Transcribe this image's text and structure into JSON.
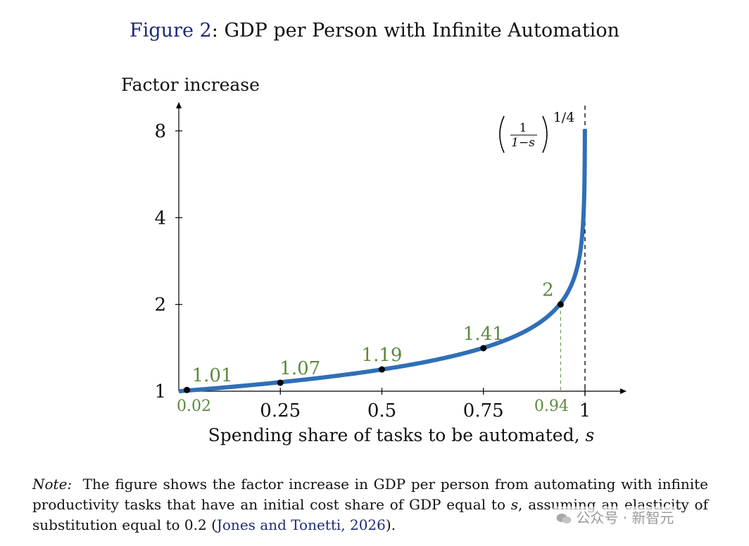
{
  "title": {
    "prefix": "Figure 2",
    "colon": ":",
    "text": "GDP per Person with Infinite Automation"
  },
  "chart_data": {
    "type": "line",
    "title": "GDP per Person with Infinite Automation",
    "xlabel": "Spending share of tasks to be automated,",
    "xlabel_var": "s",
    "ylabel": "Factor increase",
    "y_scale": "log",
    "xlim": [
      0,
      1.1
    ],
    "ylim": [
      1,
      9
    ],
    "x_ticks": [
      0.25,
      0.5,
      0.75,
      1
    ],
    "x_tick_labels": [
      "0.25",
      "0.5",
      "0.75",
      "1"
    ],
    "y_ticks": [
      1,
      2,
      4,
      8
    ],
    "y_tick_labels": [
      "1",
      "2",
      "4",
      "8"
    ],
    "series": [
      {
        "formula_base": "1/(1-s)",
        "exponent": "1/4",
        "x_max": 0.99977,
        "color": "#2f6fb7"
      }
    ],
    "highlight_points": [
      {
        "x": 0.02,
        "y": 1.01,
        "label": "1.01"
      },
      {
        "x": 0.25,
        "y": 1.07,
        "label": "1.07"
      },
      {
        "x": 0.5,
        "y": 1.19,
        "label": "1.19"
      },
      {
        "x": 0.75,
        "y": 1.41,
        "label": "1.41"
      },
      {
        "x": 0.94,
        "y": 2,
        "label": "2"
      }
    ],
    "extra_x_labels": [
      {
        "x": 0.02,
        "label": "0.02"
      },
      {
        "x": 0.94,
        "label": "0.94"
      }
    ],
    "asymptote_x": 1,
    "annotation": {
      "numerator": "1",
      "denominator": "1−s",
      "exponent": "1/4"
    },
    "label_color": "#5a8a3c",
    "point_color": "#000000"
  },
  "note": {
    "label": "Note:",
    "text_before": "The figure shows the factor increase in GDP per person from automating with infinite productivity tasks that have an initial cost share of GDP equal to",
    "var": "s",
    "text_after": ", assuming an elasticity of substitution equal to 0.2 (",
    "cite_authors": "Jones and Tonetti",
    "cite_sep": ", ",
    "cite_year": "2026",
    "close": ")."
  },
  "watermark": {
    "text": "公众号 · 新智元",
    "icon": "wechat-icon"
  }
}
